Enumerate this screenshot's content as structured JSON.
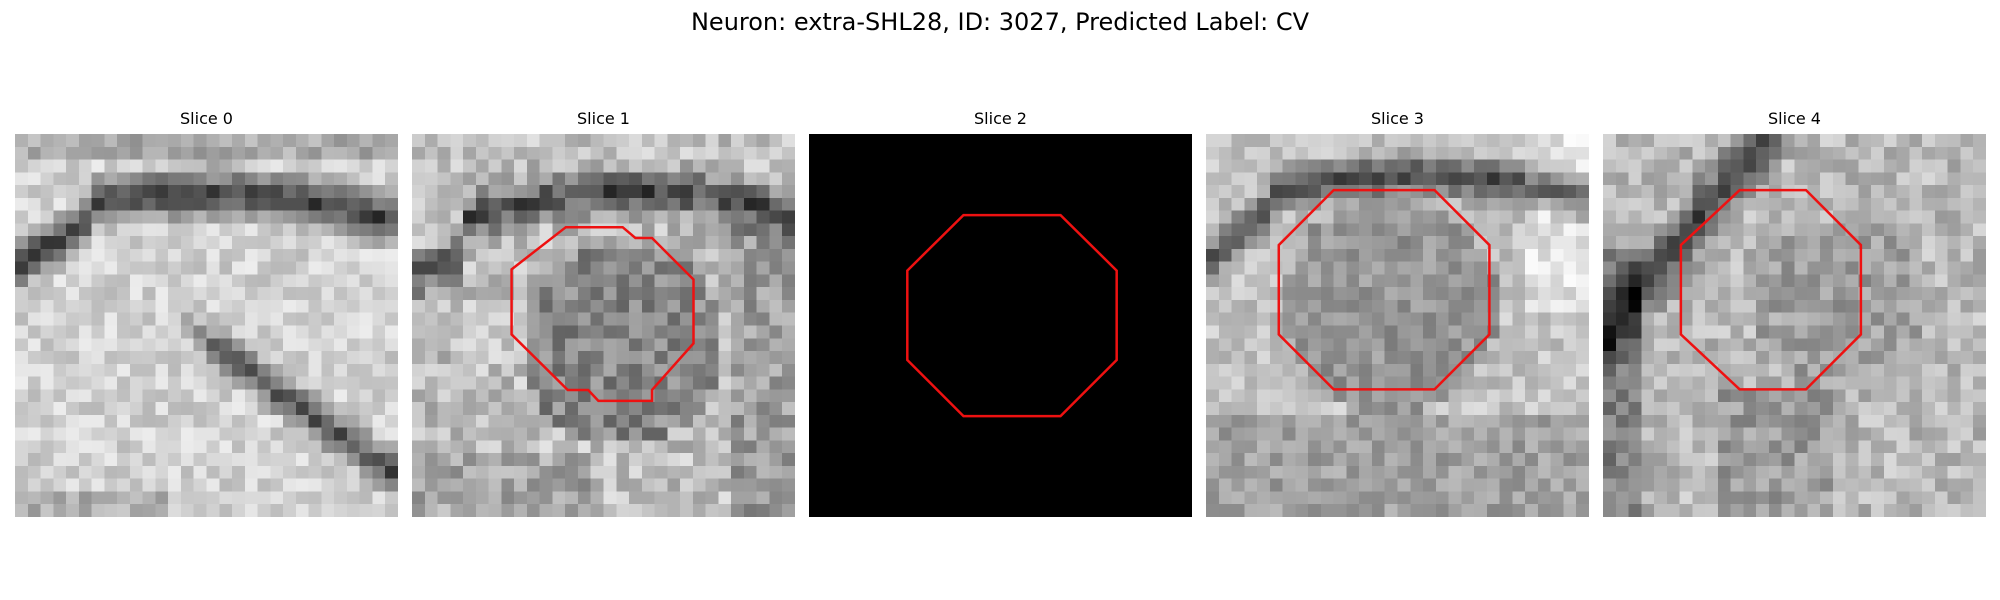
{
  "figure": {
    "title": "Neuron: extra-SHL28, ID: 3027, Predicted Label: CV",
    "contour_color": "#ee1111",
    "background_color": "#ffffff"
  },
  "slices": [
    {
      "title": "Slice 0",
      "content": "grayscale-microscopy-patch",
      "has_contour": false
    },
    {
      "title": "Slice 1",
      "content": "grayscale-microscopy-patch",
      "has_contour": true
    },
    {
      "title": "Slice 2",
      "content": "black-empty-patch",
      "has_contour": true
    },
    {
      "title": "Slice 3",
      "content": "grayscale-microscopy-patch",
      "has_contour": true
    },
    {
      "title": "Slice 4",
      "content": "grayscale-microscopy-patch",
      "has_contour": true
    }
  ]
}
